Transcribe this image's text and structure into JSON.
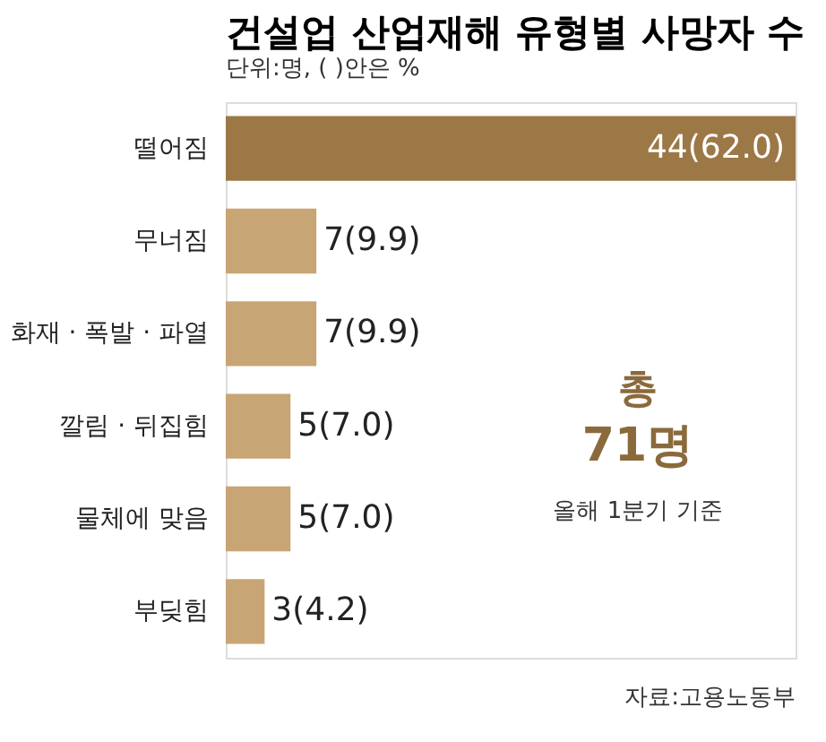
{
  "chart_data": {
    "type": "bar",
    "orientation": "horizontal",
    "title": "건설업 산업재해 유형별 사망자 수",
    "subtitle": "단위:명, ( )안은 %",
    "categories": [
      "떨어짐",
      "무너짐",
      "화재 · 폭발 · 파열",
      "깔림 · 뒤집힘",
      "물체에 맞음",
      "부딪힘"
    ],
    "values": [
      44,
      7,
      7,
      5,
      5,
      3
    ],
    "value_labels": [
      "44(62.0)",
      "7(9.9)",
      "7(9.9)",
      "5(7.0)",
      "5(7.0)",
      "3(4.2)"
    ],
    "colors": [
      "#9c7846",
      "#c8a574",
      "#c8a574",
      "#c8a574",
      "#c8a574",
      "#c8a574"
    ],
    "annotations": [
      "총",
      "71명",
      "올해 1분기 기준",
      "자료:고용노동부"
    ]
  }
}
